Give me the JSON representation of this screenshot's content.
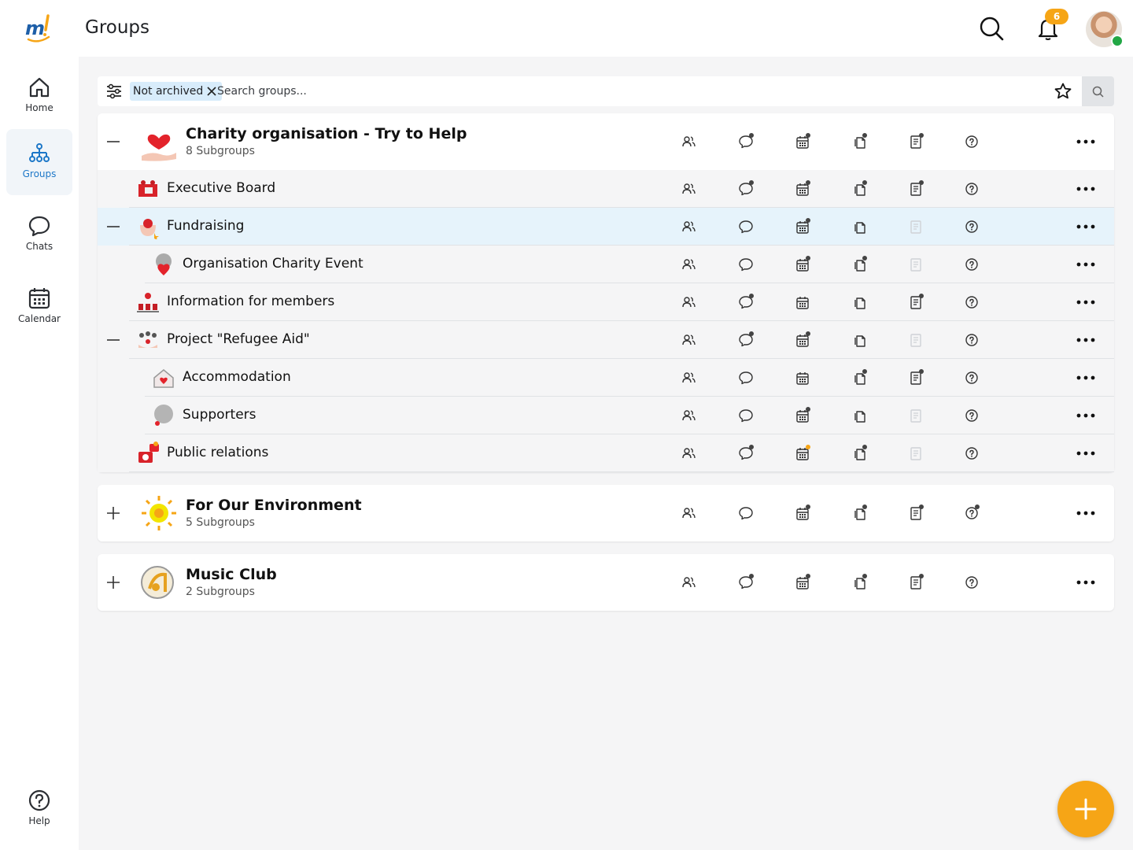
{
  "app": {
    "logo_text": "m!"
  },
  "header": {
    "title": "Groups",
    "notification_count": "6"
  },
  "sidebar": {
    "items": [
      {
        "label": "Home",
        "icon": "home-icon"
      },
      {
        "label": "Groups",
        "icon": "groups-icon",
        "active": true
      },
      {
        "label": "Chats",
        "icon": "chat-icon"
      },
      {
        "label": "Calendar",
        "icon": "calendar-icon"
      }
    ],
    "help_label": "Help"
  },
  "filter": {
    "chip_label": "Not archived",
    "search_placeholder": "Search groups..."
  },
  "groups": [
    {
      "name": "Charity organisation - Try to Help",
      "subgroups_label": "8 Subgroups",
      "expanded": true,
      "features": {
        "members": false,
        "chat": true,
        "calendar": true,
        "files": true,
        "notes": true,
        "help": false
      },
      "children": [
        {
          "name": "Executive Board",
          "level": 1,
          "features": {
            "chat": true,
            "calendar": true,
            "files": true,
            "notes": true
          }
        },
        {
          "name": "Fundraising",
          "level": 1,
          "expanded": true,
          "highlight": true,
          "features": {
            "chat": false,
            "calendar": true,
            "files": false,
            "notes": "disabled"
          }
        },
        {
          "name": "Organisation Charity Event",
          "level": 2,
          "features": {
            "chat": false,
            "calendar": true,
            "files": true,
            "notes": "disabled"
          }
        },
        {
          "name": "Information for members",
          "level": 1,
          "features": {
            "chat": true,
            "calendar": false,
            "files": false,
            "notes": true
          }
        },
        {
          "name": "Project \"Refugee Aid\"",
          "level": 1,
          "expanded": true,
          "features": {
            "chat": true,
            "calendar": true,
            "files": false,
            "notes": "disabled"
          }
        },
        {
          "name": "Accommodation",
          "level": 2,
          "features": {
            "chat": false,
            "calendar": false,
            "files": true,
            "notes": true
          }
        },
        {
          "name": "Supporters",
          "level": 2,
          "features": {
            "chat": false,
            "calendar": true,
            "files": false,
            "notes": "disabled"
          }
        },
        {
          "name": "Public relations",
          "level": 1,
          "features": {
            "chat": true,
            "calendar": "orange",
            "files": true,
            "notes": "disabled"
          }
        }
      ]
    },
    {
      "name": "For Our Environment",
      "subgroups_label": "5 Subgroups",
      "expanded": false,
      "features": {
        "chat": false,
        "calendar": true,
        "files": true,
        "notes": true,
        "help": true
      }
    },
    {
      "name": "Music Club",
      "subgroups_label": "2 Subgroups",
      "expanded": false,
      "features": {
        "chat": true,
        "calendar": true,
        "files": true,
        "notes": true,
        "help": false
      }
    }
  ],
  "colors": {
    "accent": "#f6a516",
    "active_nav": "#1e78c8",
    "highlight_row": "#e6f3fb",
    "chip_bg": "#d8ecfb"
  }
}
